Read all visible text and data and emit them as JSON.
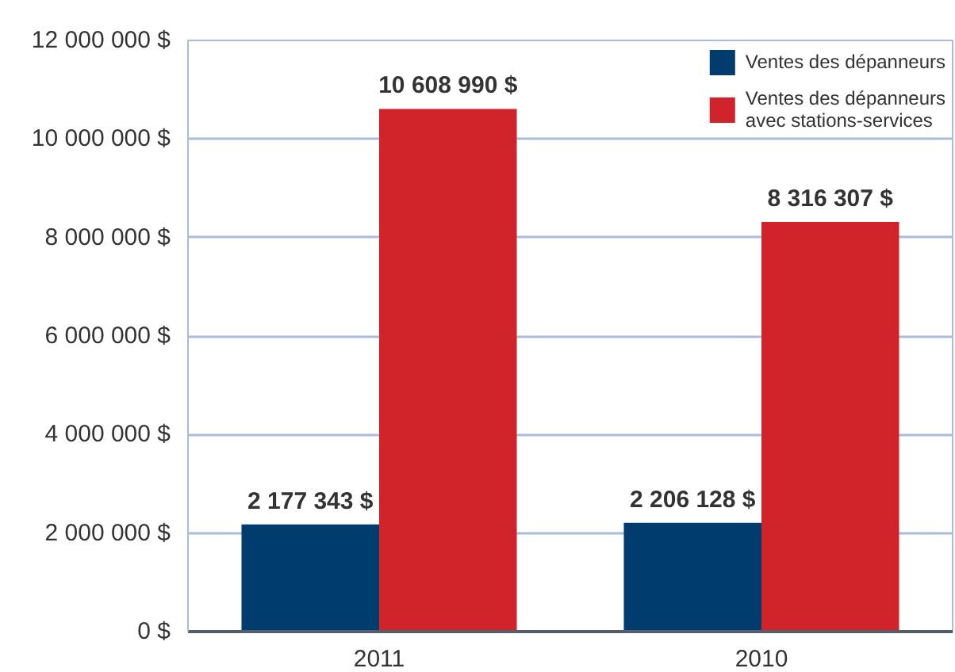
{
  "chart_data": {
    "type": "bar",
    "categories": [
      "2011",
      "2010"
    ],
    "series": [
      {
        "name": "Ventes des dépanneurs",
        "color": "#003d6e",
        "values": [
          2177343,
          2206128
        ],
        "value_labels": [
          "2 177 343 $",
          "2 206 128 $"
        ]
      },
      {
        "name": "Ventes des dépanneurs\navec stations-services",
        "color": "#d0232a",
        "values": [
          10608990,
          8316307
        ],
        "value_labels": [
          "10 608 990 $",
          "8 316 307 $"
        ]
      }
    ],
    "ylim": [
      0,
      12000000
    ],
    "yticks": [
      {
        "value": 0,
        "label": "0 $"
      },
      {
        "value": 2000000,
        "label": "2 000 000 $"
      },
      {
        "value": 4000000,
        "label": "4 000 000 $"
      },
      {
        "value": 6000000,
        "label": "6 000 000 $"
      },
      {
        "value": 8000000,
        "label": "8 000 000 $"
      },
      {
        "value": 10000000,
        "label": "10 000 000 $"
      },
      {
        "value": 12000000,
        "label": "12 000 000 $"
      }
    ],
    "grid": "y",
    "legend": "top right"
  }
}
